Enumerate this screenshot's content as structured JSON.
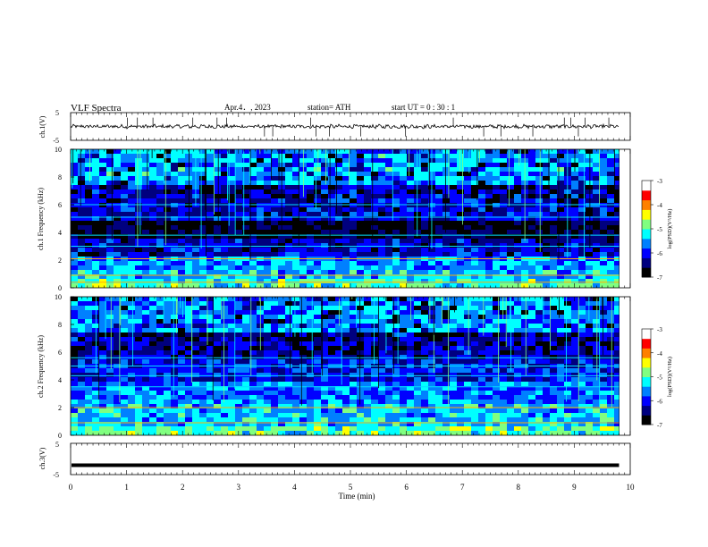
{
  "header": {
    "title": "VLF  Spectra",
    "date": "Apr.4．, 2023",
    "station": "station= ATH",
    "start": "start  UT  =    0  : 30 : 1"
  },
  "labels": {
    "ch1": "ch.1(V)",
    "ch3": "ch.3(V)",
    "spec1": "ch.1 Frequency  (kHz)",
    "spec2": "ch.2 Frequency  (kHz)",
    "xlabel": "Time  (min)",
    "colorbar": "log(PSD)(V²/Hz)"
  },
  "colors": {
    "jet": [
      "#000000",
      "#00007f",
      "#0000ff",
      "#0080ff",
      "#00ffff",
      "#80ff80",
      "#ffff00",
      "#ff8000",
      "#ff0000",
      "#ffffff"
    ]
  },
  "chart_data": [
    {
      "type": "line",
      "title": "",
      "ylabel": "ch.1(V)",
      "xlim": [
        0,
        10
      ],
      "ylim": [
        -5,
        5
      ],
      "yticks": [
        "5",
        "-5"
      ],
      "series": [
        {
          "x": [
            0.0,
            9.8
          ],
          "values": [
            0.0,
            0.0
          ]
        }
      ]
    },
    {
      "type": "heatmap",
      "ylabel": "ch.1 Frequency  (kHz)",
      "xlim": [
        0,
        10
      ],
      "ylim": [
        0,
        10
      ],
      "yticks": [
        "0",
        "2",
        "4",
        "6",
        "8",
        "10"
      ],
      "data_end_min": 9.8,
      "color_range": [
        -7,
        -3
      ],
      "colorbar_ticks": [
        "-3",
        "-4",
        "-5",
        "-6",
        "-7"
      ],
      "colorbar_label": "log(PSD)(V²/Hz)"
    },
    {
      "type": "heatmap",
      "ylabel": "ch.2 Frequency  (kHz)",
      "xlim": [
        0,
        10
      ],
      "ylim": [
        0,
        10
      ],
      "yticks": [
        "0",
        "2",
        "4",
        "6",
        "8",
        "10"
      ],
      "data_end_min": 9.8,
      "color_range": [
        -7,
        -3
      ],
      "colorbar_ticks": [
        "-3",
        "-4",
        "-5",
        "-6",
        "-7"
      ],
      "colorbar_label": "log(PSD)(V²/Hz)"
    },
    {
      "type": "line",
      "ylabel": "ch.3(V)",
      "xlim": [
        0,
        10
      ],
      "ylim": [
        -5,
        5
      ],
      "yticks": [
        "5",
        "-5"
      ],
      "xticks": [
        "0",
        "1",
        "2",
        "3",
        "4",
        "5",
        "6",
        "7",
        "8",
        "9",
        "10"
      ],
      "xlabel": "Time  (min)",
      "series": [
        {
          "x": [
            0.0,
            9.8
          ],
          "values": [
            -2.0,
            -2.0
          ]
        }
      ]
    }
  ]
}
